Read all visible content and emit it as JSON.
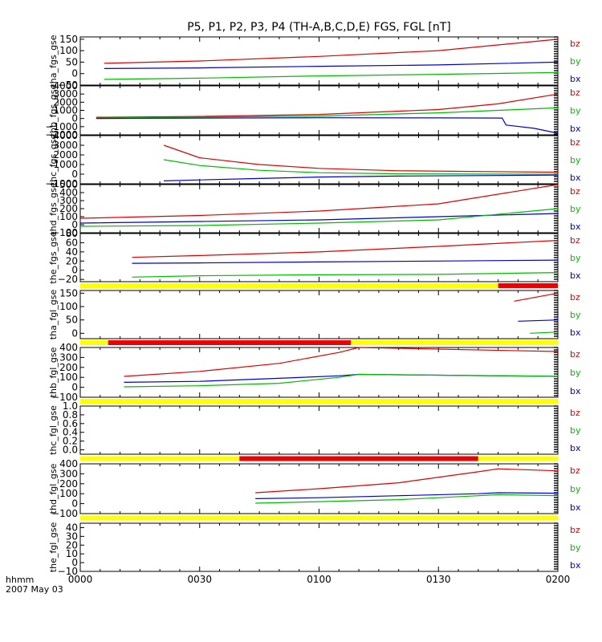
{
  "title": "P5, P1, P2, P3, P4 (TH-A,B,C,D,E) FGS, FGL [nT]",
  "footer": {
    "line1": "hhmm",
    "line2": "2007 May 03"
  },
  "x_ticks": [
    "0000",
    "0030",
    "0100",
    "0130",
    "0200"
  ],
  "colors": {
    "bz": "#dd0000",
    "by": "#00bb00",
    "bx": "#0000cc",
    "bar_yellow": "#ffff00",
    "bar_red": "#ee0000"
  },
  "chart_data": [
    {
      "type": "line",
      "ylabel": "tha_fgs_gse",
      "ylim": [
        -50,
        160
      ],
      "yticks": [
        "150",
        "100",
        "50",
        "0",
        "−50"
      ],
      "ytick_values": [
        150,
        100,
        50,
        0,
        -50
      ],
      "legend": [
        "bz",
        "by",
        "bx"
      ],
      "series": [
        {
          "name": "bz",
          "x": [
            6,
            30,
            60,
            90,
            120
          ],
          "values": [
            45,
            55,
            75,
            100,
            150
          ]
        },
        {
          "name": "bx",
          "x": [
            6,
            30,
            60,
            90,
            120
          ],
          "values": [
            22,
            25,
            32,
            38,
            50
          ]
        },
        {
          "name": "by",
          "x": [
            6,
            30,
            60,
            90,
            120
          ],
          "values": [
            -25,
            -20,
            -10,
            -3,
            5
          ]
        }
      ]
    },
    {
      "type": "line",
      "ylabel": "thb_fgs_gse",
      "ylim": [
        -2000,
        4000
      ],
      "yticks": [
        "4000",
        "3000",
        "2000",
        "1000",
        "0",
        "−1000",
        "−2000"
      ],
      "ytick_values": [
        4000,
        3000,
        2000,
        1000,
        0,
        -1000,
        -2000
      ],
      "legend": [
        "bz",
        "by",
        "bx"
      ],
      "series": [
        {
          "name": "bz",
          "x": [
            4,
            30,
            60,
            90,
            105,
            120
          ],
          "values": [
            150,
            250,
            500,
            1100,
            1800,
            3000
          ]
        },
        {
          "name": "by",
          "x": [
            4,
            30,
            60,
            90,
            105,
            120
          ],
          "values": [
            50,
            150,
            300,
            700,
            1000,
            1300
          ]
        },
        {
          "name": "bx",
          "x": [
            4,
            30,
            60,
            90,
            106,
            107,
            114,
            120
          ],
          "values": [
            0,
            50,
            100,
            80,
            60,
            -800,
            -1200,
            -1800
          ]
        }
      ]
    },
    {
      "type": "line",
      "ylabel": "thc_fgs_gse",
      "ylim": [
        -1000,
        4000
      ],
      "yticks": [
        "4000",
        "3000",
        "2000",
        "1000",
        "0",
        "−1000"
      ],
      "ytick_values": [
        4000,
        3000,
        2000,
        1000,
        0,
        -1000
      ],
      "legend": [
        "bz",
        "by",
        "bx"
      ],
      "series": [
        {
          "name": "bz",
          "x": [
            21,
            30,
            45,
            60,
            80,
            120
          ],
          "values": [
            3000,
            1700,
            1000,
            600,
            350,
            200
          ]
        },
        {
          "name": "by",
          "x": [
            21,
            30,
            45,
            60,
            80,
            120
          ],
          "values": [
            1500,
            900,
            400,
            150,
            30,
            -20
          ]
        },
        {
          "name": "bx",
          "x": [
            21,
            30,
            45,
            60,
            80,
            120
          ],
          "values": [
            -700,
            -600,
            -450,
            -300,
            -200,
            -100
          ]
        }
      ]
    },
    {
      "type": "line",
      "ylabel": "thd_fgs_gse",
      "ylim": [
        -100,
        500
      ],
      "yticks": [
        "500",
        "400",
        "300",
        "200",
        "100",
        "0",
        "−100"
      ],
      "ytick_values": [
        500,
        400,
        300,
        200,
        100,
        0,
        -100
      ],
      "legend": [
        "bz",
        "by",
        "bx"
      ],
      "series": [
        {
          "name": "bz",
          "x": [
            0,
            30,
            60,
            90,
            120
          ],
          "values": [
            80,
            115,
            170,
            260,
            500
          ]
        },
        {
          "name": "bx",
          "x": [
            0,
            30,
            60,
            90,
            120
          ],
          "values": [
            20,
            40,
            60,
            100,
            140
          ]
        },
        {
          "name": "by",
          "x": [
            0,
            30,
            60,
            90,
            120
          ],
          "values": [
            -20,
            -10,
            20,
            60,
            200
          ]
        }
      ]
    },
    {
      "type": "line",
      "ylabel": "the_fgs_gse",
      "ylim": [
        -25,
        80
      ],
      "yticks": [
        "80",
        "60",
        "40",
        "20",
        "0",
        "−20"
      ],
      "ytick_values": [
        80,
        60,
        40,
        20,
        0,
        -20
      ],
      "legend": [
        "bz",
        "by",
        "bx"
      ],
      "series": [
        {
          "name": "bz",
          "x": [
            13,
            30,
            60,
            90,
            120
          ],
          "values": [
            28,
            32,
            40,
            52,
            65
          ]
        },
        {
          "name": "bx",
          "x": [
            13,
            30,
            60,
            90,
            120
          ],
          "values": [
            15,
            16,
            18,
            20,
            22
          ]
        },
        {
          "name": "by",
          "x": [
            13,
            30,
            60,
            90,
            120
          ],
          "values": [
            -15,
            -12,
            -10,
            -9,
            -5
          ]
        }
      ],
      "status_bar": [
        {
          "from": 0,
          "to": 105,
          "color": "yellow"
        },
        {
          "from": 105,
          "to": 120,
          "color": "red"
        }
      ]
    },
    {
      "type": "line",
      "ylabel": "tha_fgl_gse",
      "ylim": [
        -20,
        160
      ],
      "yticks": [
        "150",
        "100",
        "50",
        "0"
      ],
      "ytick_values": [
        150,
        100,
        50,
        0
      ],
      "legend": [
        "bz",
        "by",
        "bx"
      ],
      "series": [
        {
          "name": "bz",
          "x": [
            109,
            120
          ],
          "values": [
            120,
            150
          ]
        },
        {
          "name": "bx",
          "x": [
            110,
            120
          ],
          "values": [
            45,
            50
          ]
        },
        {
          "name": "by",
          "x": [
            113,
            120
          ],
          "values": [
            0,
            5
          ]
        }
      ],
      "status_bar": [
        {
          "from": 0,
          "to": 7,
          "color": "yellow"
        },
        {
          "from": 7,
          "to": 68,
          "color": "red"
        },
        {
          "from": 68,
          "to": 120,
          "color": "yellow"
        }
      ]
    },
    {
      "type": "line",
      "ylabel": "thb_fgl_gse",
      "ylim": [
        -100,
        400
      ],
      "yticks": [
        "400",
        "300",
        "200",
        "100",
        "0",
        "−100"
      ],
      "ytick_values": [
        400,
        300,
        200,
        100,
        0,
        -100
      ],
      "legend": [
        "bz",
        "by",
        "bx"
      ],
      "series": [
        {
          "name": "bz",
          "x": [
            11,
            30,
            50,
            65,
            70,
            120
          ],
          "values": [
            110,
            160,
            240,
            350,
            400,
            360
          ]
        },
        {
          "name": "bx",
          "x": [
            11,
            30,
            50,
            65,
            70,
            120
          ],
          "values": [
            50,
            60,
            90,
            115,
            130,
            110
          ]
        },
        {
          "name": "by",
          "x": [
            11,
            30,
            50,
            65,
            70,
            120
          ],
          "values": [
            5,
            15,
            40,
            100,
            130,
            110
          ]
        }
      ],
      "status_bar": [
        {
          "from": 0,
          "to": 120,
          "color": "yellow"
        }
      ]
    },
    {
      "type": "line",
      "ylabel": "thc_fgl_gse",
      "ylim": [
        -0.1,
        1.0
      ],
      "yticks": [
        "1.0",
        "0.8",
        "0.6",
        "0.4",
        "0.2",
        "0.0"
      ],
      "ytick_values": [
        1.0,
        0.8,
        0.6,
        0.4,
        0.2,
        0.0
      ],
      "legend": [
        "bz",
        "by",
        "bx"
      ],
      "series": [],
      "status_bar": [
        {
          "from": 0,
          "to": 40,
          "color": "yellow"
        },
        {
          "from": 40,
          "to": 100,
          "color": "red"
        },
        {
          "from": 100,
          "to": 120,
          "color": "yellow"
        }
      ]
    },
    {
      "type": "line",
      "ylabel": "thd_fgl_gse",
      "ylim": [
        -100,
        400
      ],
      "yticks": [
        "400",
        "300",
        "200",
        "100",
        "0",
        "−100"
      ],
      "ytick_values": [
        400,
        300,
        200,
        100,
        0,
        -100
      ],
      "legend": [
        "bz",
        "by",
        "bx"
      ],
      "series": [
        {
          "name": "bz",
          "x": [
            44,
            60,
            80,
            100,
            105,
            120
          ],
          "values": [
            110,
            150,
            210,
            320,
            350,
            330
          ]
        },
        {
          "name": "bx",
          "x": [
            44,
            60,
            80,
            100,
            105,
            120
          ],
          "values": [
            50,
            60,
            80,
            100,
            110,
            105
          ]
        },
        {
          "name": "by",
          "x": [
            44,
            60,
            80,
            100,
            105,
            120
          ],
          "values": [
            5,
            20,
            40,
            80,
            90,
            80
          ]
        }
      ],
      "status_bar": [
        {
          "from": 0,
          "to": 120,
          "color": "yellow"
        }
      ]
    },
    {
      "type": "line",
      "ylabel": "the_fgl_gse",
      "ylim": [
        -10,
        45
      ],
      "yticks": [
        "40",
        "30",
        "20",
        "10",
        "0",
        "−10"
      ],
      "ytick_values": [
        40,
        30,
        20,
        10,
        0,
        -10
      ],
      "legend": [
        "bz",
        "by",
        "bx"
      ],
      "series": []
    }
  ]
}
